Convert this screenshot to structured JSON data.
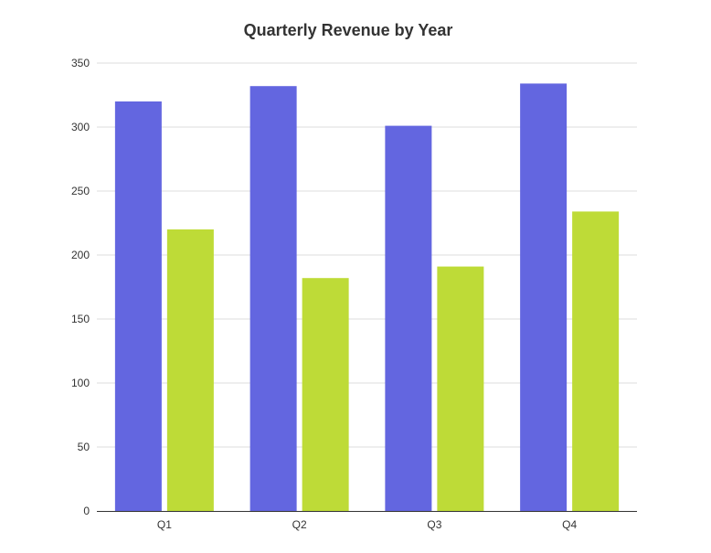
{
  "chart_data": {
    "type": "bar",
    "title": "Quarterly Revenue by Year",
    "categories": [
      "Q1",
      "Q2",
      "Q3",
      "Q4"
    ],
    "series": [
      {
        "values": [
          320,
          332,
          301,
          334
        ],
        "color": "#6366e0"
      },
      {
        "values": [
          220,
          182,
          191,
          234
        ],
        "color": "#bedb37"
      }
    ],
    "ylim": [
      0,
      350
    ],
    "yticks": [
      0,
      50,
      100,
      150,
      200,
      250,
      300,
      350
    ],
    "grid": true,
    "legend": "none"
  }
}
